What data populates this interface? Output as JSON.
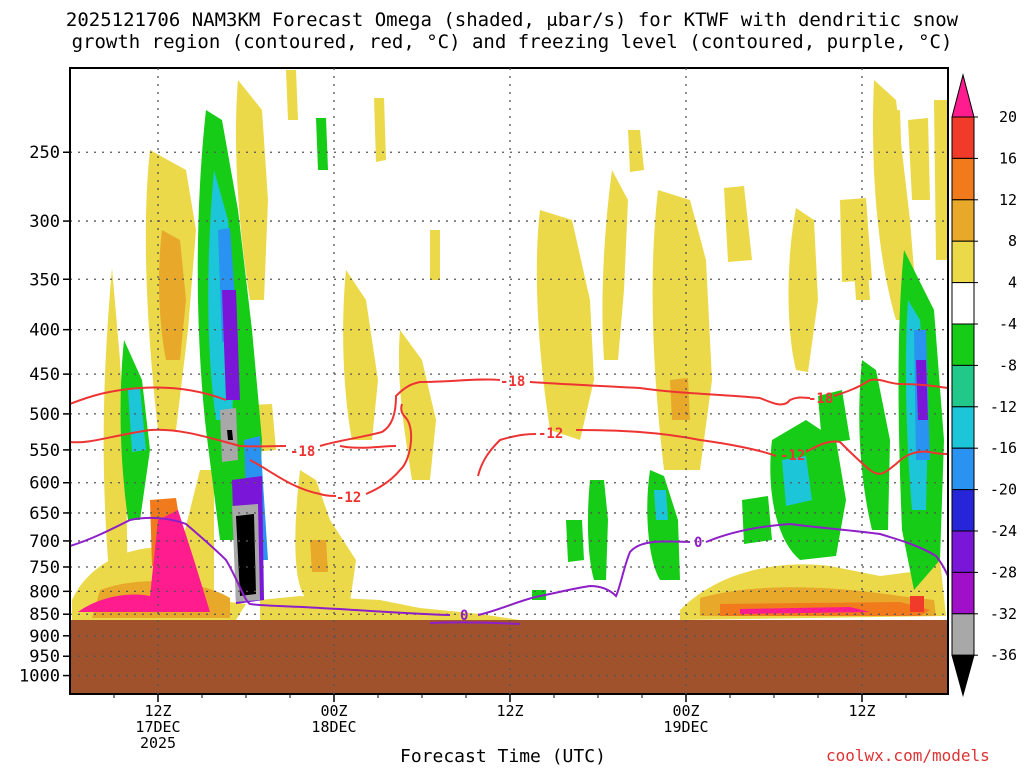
{
  "header": {
    "title_line1": "2025121706 NAM3KM Forecast Omega (shaded, μbar/s) for KTWF with dendritic snow",
    "title_line2": "growth region (contoured, red, °C) and freezing level (contoured, purple, °C)"
  },
  "footer": {
    "xaxis_title": "Forecast Time (UTC)",
    "credit": "coolwx.com/models"
  },
  "colors": {
    "ground": "#a0522d",
    "dgz_contour": "#ee3333",
    "freezing_contour": "#8e1fc8"
  },
  "chart_data": {
    "type": "heatmap",
    "title": "2025121706 NAM3KM Forecast Omega (shaded, μbar/s) for KTWF",
    "xlabel": "Forecast Time (UTC)",
    "ylabel": "",
    "x_ticks": [
      {
        "time": "2025-12-17 12Z",
        "lines": [
          "12Z",
          "17DEC",
          "2025"
        ]
      },
      {
        "time": "2025-12-18 00Z",
        "lines": [
          "00Z",
          "18DEC"
        ]
      },
      {
        "time": "2025-12-18 12Z",
        "lines": [
          "12Z"
        ]
      },
      {
        "time": "2025-12-19 00Z",
        "lines": [
          "00Z",
          "19DEC"
        ]
      },
      {
        "time": "2025-12-19 12Z",
        "lines": [
          "12Z"
        ]
      }
    ],
    "y_axis": {
      "scale": "log-pressure",
      "unit": "hPa",
      "ticks": [
        250,
        300,
        350,
        400,
        450,
        500,
        550,
        600,
        650,
        700,
        750,
        800,
        850,
        900,
        950,
        1000
      ],
      "ylim": [
        1050,
        200
      ],
      "grid": true
    },
    "colorbar": {
      "unit": "μbar/s",
      "labels": [
        "20",
        "16",
        "12",
        "8",
        "4",
        "-4",
        "-8",
        "-12",
        "-16",
        "-20",
        "-24",
        "-28",
        "-32",
        "-36"
      ],
      "bins": [
        {
          "lo": 20,
          "hi": null,
          "color": "#ff1c8e"
        },
        {
          "lo": 16,
          "hi": 20,
          "color": "#f03a2a"
        },
        {
          "lo": 12,
          "hi": 16,
          "color": "#f07a1c"
        },
        {
          "lo": 8,
          "hi": 12,
          "color": "#e8a82a"
        },
        {
          "lo": 4,
          "hi": 8,
          "color": "#ecd94a"
        },
        {
          "lo": -4,
          "hi": 4,
          "color": "#ffffff"
        },
        {
          "lo": -8,
          "hi": -4,
          "color": "#16cc16"
        },
        {
          "lo": -12,
          "hi": -8,
          "color": "#22c78a"
        },
        {
          "lo": -16,
          "hi": -12,
          "color": "#1cc6d8"
        },
        {
          "lo": -20,
          "hi": -16,
          "color": "#2a92f0"
        },
        {
          "lo": -24,
          "hi": -20,
          "color": "#2626d8"
        },
        {
          "lo": -28,
          "hi": -24,
          "color": "#7a16d8"
        },
        {
          "lo": -32,
          "hi": -28,
          "color": "#a010c8"
        },
        {
          "lo": -36,
          "hi": -32,
          "color": "#a8a8a8"
        },
        {
          "lo": null,
          "hi": -36,
          "color": "#000000"
        }
      ]
    },
    "contour_labels": [
      {
        "text": "-18",
        "color": "red"
      },
      {
        "text": "-18",
        "color": "red"
      },
      {
        "text": "-18",
        "color": "red"
      },
      {
        "text": "-12",
        "color": "red"
      },
      {
        "text": "-12",
        "color": "red"
      },
      {
        "text": "-12",
        "color": "red"
      },
      {
        "text": "0",
        "color": "purple"
      },
      {
        "text": "0",
        "color": "purple"
      }
    ],
    "ground_level_hPa": 860
  }
}
